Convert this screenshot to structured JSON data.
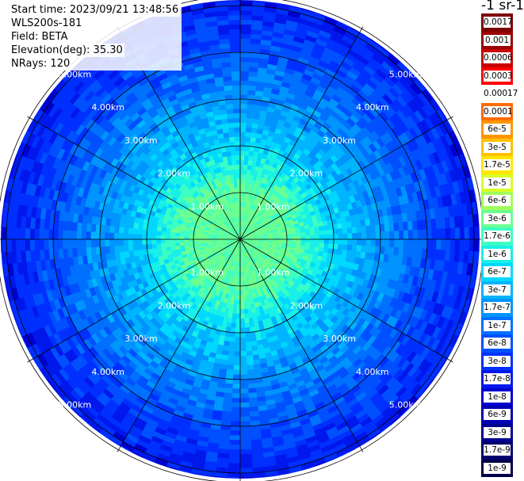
{
  "info": {
    "start_time": "Start time: 2023/09/21 13:48:56",
    "instrument": "WLS200s-181",
    "field": "Field: BETA",
    "elevation": "Elevation(deg): 35.30",
    "nrays": "NRays: 120"
  },
  "colorbar": {
    "unit_label": "-1 sr-1",
    "labels": [
      "0.0017",
      "0.001",
      "0.0006",
      "0.0003",
      "0.00017",
      "0.0001",
      "6e-5",
      "3e-5",
      "1.7e-5",
      "1e-5",
      "6e-6",
      "3e-6",
      "1.7e-6",
      "1e-6",
      "6e-7",
      "3e-7",
      "1.7e-7",
      "1e-7",
      "6e-8",
      "3e-8",
      "1.7e-8",
      "1e-8",
      "6e-9",
      "3e-9",
      "1.7e-9",
      "1e-9"
    ],
    "colors": [
      "#7f0000",
      "#9b0000",
      "#c80000",
      "#ff0000",
      "#ffffff",
      "#ff6a00",
      "#ff9600",
      "#ffc200",
      "#ffe600",
      "#d8ff28",
      "#a0ff5c",
      "#6cff90",
      "#3cffc4",
      "#18f0e8",
      "#00d8ff",
      "#00b4ff",
      "#0094ff",
      "#0070ff",
      "#0050ff",
      "#0030ff",
      "#0018ec",
      "#0000d0",
      "#0000b0",
      "#000090",
      "#00006e",
      "#00004c"
    ]
  },
  "chart_data": {
    "type": "heatmap",
    "projection": "polar-ppi",
    "rings_km": [
      1,
      2,
      3,
      4,
      5
    ],
    "max_range_km": 5.2,
    "nrays": 120,
    "radial_spoke_angles_deg": [
      0,
      30,
      60,
      90,
      120,
      150,
      180,
      210,
      240,
      270,
      300,
      330
    ],
    "ring_label_positions": [
      "upper-left",
      "upper-right",
      "lower-left",
      "lower-right"
    ],
    "ring_labels": [
      "1.00km",
      "2.00km",
      "3.00km",
      "4.00km",
      "5.00km"
    ],
    "value_profile": [
      {
        "range_km": 0.0,
        "beta": "3e-6"
      },
      {
        "range_km": 1.0,
        "beta": "3e-6"
      },
      {
        "range_km": 2.0,
        "beta": "6e-7"
      },
      {
        "range_km": 3.0,
        "beta": "1.7e-7"
      },
      {
        "range_km": 4.0,
        "beta": "6e-8"
      },
      {
        "range_km": 5.2,
        "beta": "1.7e-8"
      }
    ]
  }
}
